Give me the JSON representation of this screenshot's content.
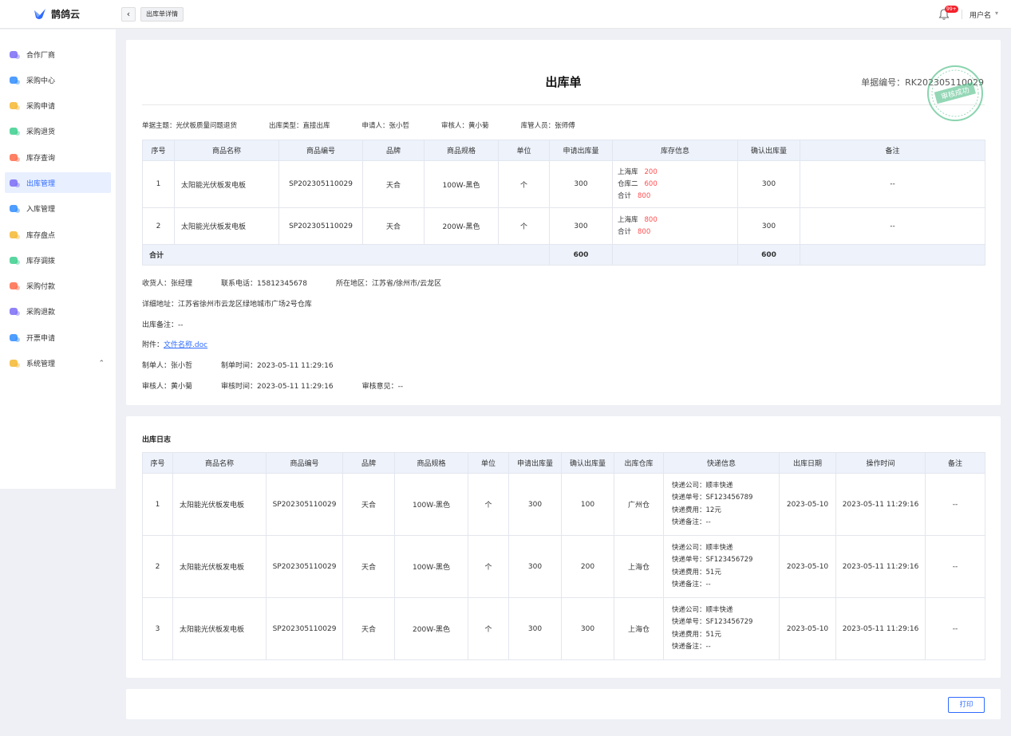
{
  "app": {
    "name": "鹊鸽云"
  },
  "header": {
    "back_icon": "chevron-left-icon",
    "tab": "出库单详情",
    "notif_badge": "99+",
    "username": "用户名"
  },
  "sidebar": {
    "items": [
      {
        "label": "合作厂商",
        "color": "#7b6cf6"
      },
      {
        "label": "采购中心",
        "color": "#2f8cff"
      },
      {
        "label": "采购申请",
        "color": "#f5b731"
      },
      {
        "label": "采购退货",
        "color": "#3ccf8e"
      },
      {
        "label": "库存查询",
        "color": "#ff6b4a"
      },
      {
        "label": "出库管理",
        "color": "#7b6cf6",
        "active": true
      },
      {
        "label": "入库管理",
        "color": "#2f8cff"
      },
      {
        "label": "库存盘点",
        "color": "#f5b731"
      },
      {
        "label": "库存调拨",
        "color": "#3ccf8e"
      },
      {
        "label": "采购付款",
        "color": "#ff6b4a"
      },
      {
        "label": "采购退款",
        "color": "#7b6cf6"
      },
      {
        "label": "开票申请",
        "color": "#2f8cff"
      },
      {
        "label": "系统管理",
        "color": "#f5b731",
        "expandable": true
      }
    ]
  },
  "doc": {
    "title": "出库单",
    "doc_no": "单据编号：RK202305110029",
    "stamp_text": "审核成功",
    "meta": [
      "单据主题：光伏板质量问题退货",
      "出库类型：直接出库",
      "申请人：张小哲",
      "审核人：黄小菊",
      "库管人员：张师傅"
    ],
    "columns": [
      "序号",
      "商品名称",
      "商品编号",
      "品牌",
      "商品规格",
      "单位",
      "申请出库量",
      "库存信息",
      "确认出库量",
      "备注"
    ],
    "rows": [
      {
        "no": "1",
        "name": "太阳能光伏板发电板",
        "code": "SP202305110029",
        "brand": "天合",
        "spec": "100W-黑色",
        "unit": "个",
        "req": "300",
        "stock": [
          {
            "w": "上海库",
            "n": "200"
          },
          {
            "w": "仓库二",
            "n": "600"
          },
          {
            "w": "合计",
            "n": "800"
          }
        ],
        "confirm": "300",
        "note": "--"
      },
      {
        "no": "2",
        "name": "太阳能光伏板发电板",
        "code": "SP202305110029",
        "brand": "天合",
        "spec": "200W-黑色",
        "unit": "个",
        "req": "300",
        "stock": [
          {
            "w": "上海库",
            "n": "800"
          },
          {
            "w": "合计",
            "n": "800"
          }
        ],
        "confirm": "300",
        "note": "--"
      }
    ],
    "total": {
      "label": "合计",
      "req": "600",
      "confirm": "600"
    },
    "receiver": "收货人：张经理",
    "phone": "联系电话：15812345678",
    "region": "所在地区：江苏省/徐州市/云龙区",
    "address": "详细地址：江苏省徐州市云龙区绿地城市广场2号仓库",
    "remark": "出库备注：--",
    "attach_label": "附件：",
    "attach_file": "文件名称.doc",
    "maker": "制单人：张小哲",
    "make_time": "制单时间：2023-05-11  11:29:16",
    "auditor": "审核人：黄小菊",
    "audit_time": "审核时间：2023-05-11  11:29:16",
    "audit_opinion": "审核意见：--"
  },
  "log": {
    "title": "出库日志",
    "columns": [
      "序号",
      "商品名称",
      "商品编号",
      "品牌",
      "商品规格",
      "单位",
      "申请出库量",
      "确认出库量",
      "出库仓库",
      "快递信息",
      "出库日期",
      "操作时间",
      "备注"
    ],
    "rows": [
      {
        "no": "1",
        "name": "太阳能光伏板发电板",
        "code": "SP202305110029",
        "brand": "天合",
        "spec": "100W-黑色",
        "unit": "个",
        "req": "300",
        "confirm": "100",
        "wh": "广州仓",
        "express": [
          "快递公司：顺丰快递",
          "快递单号：SF123456789",
          "快递费用：12元",
          "快递备注：--"
        ],
        "date": "2023-05-10",
        "op_time": "2023-05-11  11:29:16",
        "note": "--"
      },
      {
        "no": "2",
        "name": "太阳能光伏板发电板",
        "code": "SP202305110029",
        "brand": "天合",
        "spec": "100W-黑色",
        "unit": "个",
        "req": "300",
        "confirm": "200",
        "wh": "上海仓",
        "express": [
          "快递公司：顺丰快递",
          "快递单号：SF123456729",
          "快递费用：51元",
          "快递备注：--"
        ],
        "date": "2023-05-10",
        "op_time": "2023-05-11  11:29:16",
        "note": "--"
      },
      {
        "no": "3",
        "name": "太阳能光伏板发电板",
        "code": "SP202305110029",
        "brand": "天合",
        "spec": "200W-黑色",
        "unit": "个",
        "req": "300",
        "confirm": "300",
        "wh": "上海仓",
        "express": [
          "快递公司：顺丰快递",
          "快递单号：SF123456729",
          "快递费用：51元",
          "快递备注：--"
        ],
        "date": "2023-05-10",
        "op_time": "2023-05-11  11:29:16",
        "note": "--"
      }
    ]
  },
  "footer": {
    "print_label": "打印"
  },
  "colors": {
    "accent": "#2f6bff",
    "danger": "#ff4d4f",
    "stamp": "#3cb77a"
  }
}
